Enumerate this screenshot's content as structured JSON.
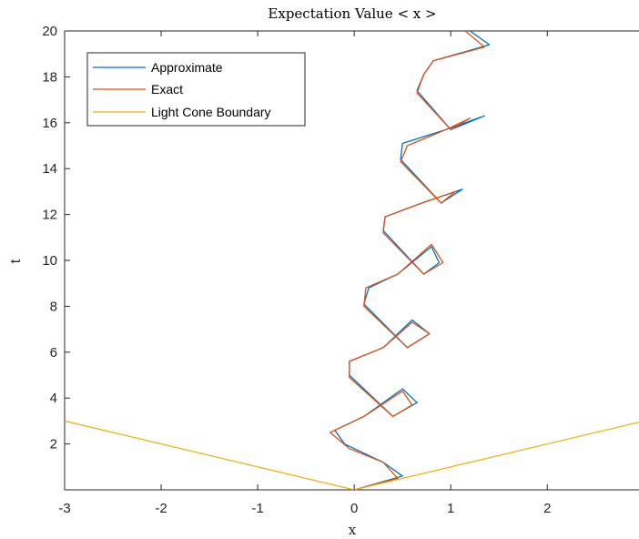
{
  "chart_data": {
    "type": "line",
    "title": "Expectation Value < x >",
    "xlabel": "x",
    "ylabel": "t",
    "xlim": [
      -3,
      2.95
    ],
    "ylim": [
      0,
      20
    ],
    "xticks": [
      -3,
      -2,
      -1,
      0,
      1,
      2
    ],
    "yticks": [
      2,
      4,
      6,
      8,
      10,
      12,
      14,
      16,
      18,
      20
    ],
    "x_tick_labels": [
      "-3",
      "-2",
      "-1",
      "0",
      "1",
      "2"
    ],
    "y_tick_labels": [
      "2",
      "4",
      "6",
      "8",
      "10",
      "12",
      "14",
      "16",
      "18",
      "20"
    ],
    "grid": false,
    "legend_position": "top-left",
    "series": [
      {
        "name": "Approximate",
        "color": "#0072BD",
        "x": [
          0.0,
          0.5,
          0.3,
          -0.1,
          -0.2,
          0.1,
          0.5,
          0.65,
          0.4,
          -0.05,
          -0.05,
          0.3,
          0.6,
          0.78,
          0.55,
          0.1,
          0.15,
          0.45,
          0.8,
          0.88,
          0.72,
          0.3,
          0.32,
          0.7,
          1.12,
          0.9,
          0.48,
          0.5,
          0.95,
          1.35,
          1.0,
          0.65,
          0.72,
          0.82,
          1.4,
          1.2
        ],
        "y": [
          0.0,
          0.6,
          1.2,
          2.0,
          2.6,
          3.2,
          4.4,
          3.8,
          3.2,
          5.0,
          5.6,
          6.2,
          7.4,
          6.8,
          6.2,
          8.1,
          8.8,
          9.4,
          10.6,
          9.9,
          9.4,
          11.3,
          11.9,
          12.5,
          13.1,
          12.5,
          14.4,
          15.1,
          15.7,
          16.3,
          15.7,
          17.4,
          18.1,
          18.7,
          19.4,
          20.0
        ]
      },
      {
        "name": "Exact",
        "color": "#D95319",
        "x": [
          0.0,
          0.45,
          0.3,
          -0.05,
          -0.25,
          0.1,
          0.5,
          0.6,
          0.4,
          -0.05,
          -0.05,
          0.3,
          0.6,
          0.78,
          0.55,
          0.1,
          0.12,
          0.45,
          0.8,
          0.92,
          0.72,
          0.3,
          0.32,
          0.7,
          1.05,
          0.9,
          0.48,
          0.55,
          0.95,
          1.2,
          1.0,
          0.65,
          0.72,
          0.82,
          1.35,
          1.15
        ],
        "y": [
          0.0,
          0.5,
          1.2,
          1.8,
          2.5,
          3.2,
          4.3,
          3.7,
          3.2,
          4.9,
          5.6,
          6.2,
          7.3,
          6.8,
          6.2,
          8.0,
          8.8,
          9.4,
          10.7,
          9.9,
          9.4,
          11.2,
          11.9,
          12.5,
          13.0,
          12.5,
          14.3,
          15.0,
          15.7,
          16.2,
          15.7,
          17.3,
          18.1,
          18.7,
          19.3,
          20.0
        ]
      },
      {
        "name": "Light Cone Boundary",
        "color": "#EDB120",
        "x": [
          -3,
          0,
          2.95
        ],
        "y": [
          3.0,
          0,
          2.95
        ]
      }
    ]
  }
}
